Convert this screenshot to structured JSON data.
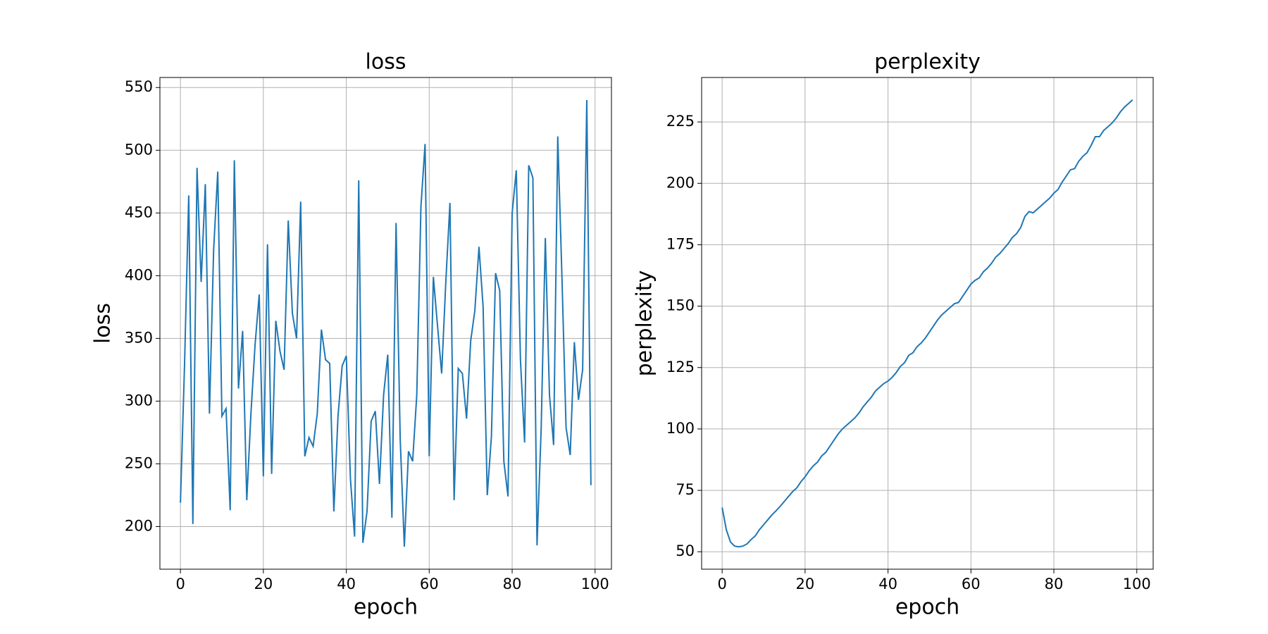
{
  "chart_data": [
    {
      "type": "line",
      "title": "loss",
      "xlabel": "epoch",
      "ylabel": "loss",
      "grid": true,
      "xlim": [
        -4.95,
        103.95
      ],
      "ylim": [
        166,
        558
      ],
      "xticks": [
        0,
        20,
        40,
        60,
        80,
        100
      ],
      "yticks": [
        200,
        250,
        300,
        350,
        400,
        450,
        500,
        550
      ],
      "x": [
        0,
        1,
        2,
        3,
        4,
        5,
        6,
        7,
        8,
        9,
        10,
        11,
        12,
        13,
        14,
        15,
        16,
        17,
        18,
        19,
        20,
        21,
        22,
        23,
        24,
        25,
        26,
        27,
        28,
        29,
        30,
        31,
        32,
        33,
        34,
        35,
        36,
        37,
        38,
        39,
        40,
        41,
        42,
        43,
        44,
        45,
        46,
        47,
        48,
        49,
        50,
        51,
        52,
        53,
        54,
        55,
        56,
        57,
        58,
        59,
        60,
        61,
        62,
        63,
        64,
        65,
        66,
        67,
        68,
        69,
        70,
        71,
        72,
        73,
        74,
        75,
        76,
        77,
        78,
        79,
        80,
        81,
        82,
        83,
        84,
        85,
        86,
        87,
        88,
        89,
        90,
        91,
        92,
        93,
        94,
        95,
        96,
        97,
        98,
        99
      ],
      "series": [
        {
          "name": "loss",
          "color": "#1f77b4",
          "values": [
            219,
            330,
            464,
            202,
            486,
            395,
            473,
            290,
            420,
            483,
            288,
            294,
            213,
            492,
            310,
            356,
            221,
            290,
            345,
            385,
            240,
            425,
            242,
            364,
            340,
            325,
            444,
            370,
            350,
            459,
            256,
            271,
            264,
            290,
            357,
            333,
            330,
            212,
            288,
            328,
            336,
            238,
            192,
            476,
            187,
            212,
            284,
            292,
            234,
            305,
            337,
            207,
            442,
            270,
            184,
            260,
            252,
            305,
            455,
            505,
            256,
            399,
            360,
            322,
            395,
            458,
            221,
            326,
            322,
            286,
            348,
            372,
            423,
            375,
            225,
            272,
            402,
            388,
            252,
            224,
            450,
            484,
            333,
            267,
            488,
            478,
            185,
            278,
            430,
            305,
            265,
            511,
            400,
            279,
            257,
            347,
            301,
            325,
            540,
            233
          ]
        }
      ]
    },
    {
      "type": "line",
      "title": "perplexity",
      "xlabel": "epoch",
      "ylabel": "perplexity",
      "grid": true,
      "xlim": [
        -4.95,
        103.95
      ],
      "ylim": [
        42.9,
        243.1
      ],
      "xticks": [
        0,
        20,
        40,
        60,
        80,
        100
      ],
      "yticks": [
        50,
        75,
        100,
        125,
        150,
        175,
        200,
        225
      ],
      "x": [
        0,
        1,
        2,
        3,
        4,
        5,
        6,
        7,
        8,
        9,
        10,
        11,
        12,
        13,
        14,
        15,
        16,
        17,
        18,
        19,
        20,
        21,
        22,
        23,
        24,
        25,
        26,
        27,
        28,
        29,
        30,
        31,
        32,
        33,
        34,
        35,
        36,
        37,
        38,
        39,
        40,
        41,
        42,
        43,
        44,
        45,
        46,
        47,
        48,
        49,
        50,
        51,
        52,
        53,
        54,
        55,
        56,
        57,
        58,
        59,
        60,
        61,
        62,
        63,
        64,
        65,
        66,
        67,
        68,
        69,
        70,
        71,
        72,
        73,
        74,
        75,
        76,
        77,
        78,
        79,
        80,
        81,
        82,
        83,
        84,
        85,
        86,
        87,
        88,
        89,
        90,
        91,
        92,
        93,
        94,
        95,
        96,
        97,
        98,
        99
      ],
      "series": [
        {
          "name": "perplexity",
          "color": "#1f77b4",
          "values": [
            68,
            59,
            54,
            52.3,
            52,
            52.3,
            53.2,
            55,
            56.5,
            59,
            61,
            63,
            65,
            66.7,
            68.5,
            70.5,
            72.5,
            74.5,
            76,
            78.5,
            80.5,
            83,
            85,
            86.5,
            89,
            90.5,
            93,
            95.5,
            98,
            100,
            101.5,
            103,
            104.5,
            106.5,
            109,
            111,
            113,
            115.5,
            117,
            118.5,
            119.5,
            121,
            123,
            125.5,
            127,
            130,
            131,
            133.5,
            135,
            137,
            139.5,
            142,
            144.5,
            146.5,
            148,
            149.5,
            151,
            151.5,
            154,
            156.5,
            159,
            160.5,
            161.5,
            164,
            165.5,
            167.5,
            170,
            171.5,
            173.5,
            175.5,
            178,
            179.5,
            182,
            186.5,
            188.5,
            188,
            189.5,
            191,
            192.5,
            194,
            196,
            197.5,
            200.5,
            203,
            205.5,
            206,
            209,
            211,
            212.5,
            215.5,
            219,
            219,
            221.5,
            223,
            224.5,
            226.5,
            229,
            231,
            232.5,
            234
          ]
        }
      ]
    }
  ]
}
